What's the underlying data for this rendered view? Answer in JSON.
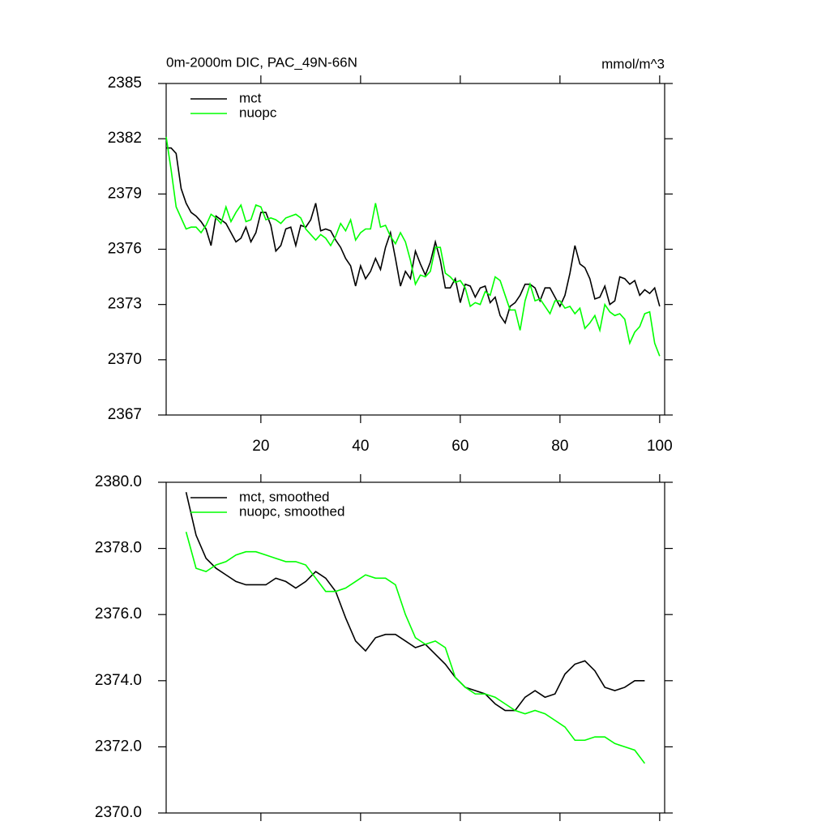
{
  "chart_data": [
    {
      "type": "line",
      "title": "0m-2000m DIC, PAC_49N-66N",
      "units": "mmol/m^3",
      "x": [
        1,
        2,
        3,
        4,
        5,
        6,
        7,
        8,
        9,
        10,
        11,
        12,
        13,
        14,
        15,
        16,
        17,
        18,
        19,
        20,
        21,
        22,
        23,
        24,
        25,
        26,
        27,
        28,
        29,
        30,
        31,
        32,
        33,
        34,
        35,
        36,
        37,
        38,
        39,
        40,
        41,
        42,
        43,
        44,
        45,
        46,
        47,
        48,
        49,
        50,
        51,
        52,
        53,
        54,
        55,
        56,
        57,
        58,
        59,
        60,
        61,
        62,
        63,
        64,
        65,
        66,
        67,
        68,
        69,
        70,
        71,
        72,
        73,
        74,
        75,
        76,
        77,
        78,
        79,
        80,
        81,
        82,
        83,
        84,
        85,
        86,
        87,
        88,
        89,
        90,
        91,
        92,
        93,
        94,
        95,
        96,
        97,
        98,
        99,
        100
      ],
      "series": [
        {
          "name": "mct",
          "color": "#000000",
          "values": [
            2381.5,
            2381.5,
            2381.2,
            2379.3,
            2378.5,
            2378.0,
            2377.8,
            2377.5,
            2377.1,
            2376.2,
            2377.8,
            2377.6,
            2377.4,
            2376.9,
            2376.4,
            2376.6,
            2377.2,
            2376.4,
            2376.9,
            2378.0,
            2378.0,
            2377.3,
            2375.9,
            2376.2,
            2377.1,
            2377.2,
            2376.2,
            2377.3,
            2377.2,
            2377.6,
            2378.5,
            2377.0,
            2377.1,
            2377.0,
            2376.5,
            2376.1,
            2375.5,
            2375.1,
            2374.0,
            2375.1,
            2374.4,
            2374.8,
            2375.5,
            2374.9,
            2376.1,
            2376.9,
            2375.5,
            2374.0,
            2374.8,
            2374.4,
            2375.9,
            2375.2,
            2374.6,
            2375.3,
            2376.4,
            2375.4,
            2373.9,
            2373.9,
            2374.4,
            2373.1,
            2374.1,
            2374.0,
            2373.4,
            2373.9,
            2374.0,
            2373.1,
            2373.4,
            2372.4,
            2372.0,
            2372.9,
            2373.1,
            2373.5,
            2374.1,
            2374.1,
            2373.9,
            2373.2,
            2373.9,
            2373.9,
            2373.4,
            2372.9,
            2373.5,
            2374.7,
            2376.2,
            2375.2,
            2375.0,
            2374.4,
            2373.3,
            2373.4,
            2374.0,
            2373.0,
            2373.2,
            2374.5,
            2374.4,
            2374.1,
            2374.3,
            2373.5,
            2373.8,
            2373.6,
            2373.9,
            2372.9
          ]
        },
        {
          "name": "nuopc",
          "color": "#00ff00",
          "values": [
            2382.1,
            2380.3,
            2378.3,
            2377.7,
            2377.1,
            2377.2,
            2377.2,
            2376.9,
            2377.3,
            2377.9,
            2377.7,
            2377.4,
            2378.3,
            2377.5,
            2378.0,
            2378.4,
            2377.5,
            2377.6,
            2378.4,
            2378.3,
            2377.6,
            2377.7,
            2377.6,
            2377.4,
            2377.7,
            2377.8,
            2377.9,
            2377.7,
            2377.1,
            2376.8,
            2376.5,
            2376.8,
            2376.6,
            2376.2,
            2376.7,
            2377.4,
            2377.0,
            2377.6,
            2376.5,
            2376.9,
            2377.1,
            2377.1,
            2378.5,
            2377.2,
            2377.3,
            2376.7,
            2376.3,
            2376.9,
            2376.4,
            2375.4,
            2374.1,
            2374.6,
            2374.5,
            2374.8,
            2376.1,
            2376.1,
            2374.7,
            2374.5,
            2374.2,
            2374.3,
            2373.9,
            2372.9,
            2373.1,
            2373.0,
            2373.7,
            2373.5,
            2374.5,
            2374.3,
            2373.5,
            2372.7,
            2372.7,
            2371.6,
            2373.2,
            2374.1,
            2373.2,
            2373.3,
            2372.9,
            2372.5,
            2373.2,
            2373.2,
            2372.8,
            2372.9,
            2372.5,
            2372.8,
            2371.7,
            2372.0,
            2372.4,
            2371.6,
            2373.0,
            2372.6,
            2372.4,
            2372.5,
            2372.2,
            2370.9,
            2371.5,
            2371.8,
            2372.5,
            2372.6,
            2370.9,
            2370.2
          ]
        }
      ],
      "xlim": [
        1,
        101
      ],
      "xticks": [
        20,
        40,
        60,
        80,
        100
      ],
      "ylim": [
        2367,
        2385
      ],
      "yticks": [
        2367,
        2370,
        2373,
        2376,
        2379,
        2382,
        2385
      ],
      "legend": "upper left"
    },
    {
      "type": "line",
      "x": [
        5,
        7,
        9,
        11,
        13,
        15,
        17,
        19,
        21,
        23,
        25,
        27,
        29,
        31,
        33,
        35,
        37,
        39,
        41,
        43,
        45,
        47,
        49,
        51,
        53,
        55,
        57,
        59,
        61,
        63,
        65,
        67,
        69,
        71,
        73,
        75,
        77,
        79,
        81,
        83,
        85,
        87,
        89,
        91,
        93,
        95,
        97
      ],
      "series": [
        {
          "name": "mct, smoothed",
          "color": "#000000",
          "values": [
            2379.7,
            2378.4,
            2377.7,
            2377.4,
            2377.2,
            2377.0,
            2376.9,
            2376.9,
            2376.9,
            2377.1,
            2377.0,
            2376.8,
            2377.0,
            2377.3,
            2377.1,
            2376.7,
            2375.9,
            2375.2,
            2374.9,
            2375.3,
            2375.4,
            2375.4,
            2375.2,
            2375.0,
            2375.1,
            2374.8,
            2374.5,
            2374.1,
            2373.8,
            2373.7,
            2373.6,
            2373.3,
            2373.1,
            2373.1,
            2373.5,
            2373.7,
            2373.5,
            2373.6,
            2374.2,
            2374.5,
            2374.6,
            2374.3,
            2373.8,
            2373.7,
            2373.8,
            2374.0,
            2374.0
          ]
        },
        {
          "name": "nuopc, smoothed",
          "color": "#00ff00",
          "values": [
            2378.5,
            2377.4,
            2377.3,
            2377.5,
            2377.6,
            2377.8,
            2377.9,
            2377.9,
            2377.8,
            2377.7,
            2377.6,
            2377.6,
            2377.5,
            2377.1,
            2376.7,
            2376.7,
            2376.8,
            2377.0,
            2377.2,
            2377.1,
            2377.1,
            2376.9,
            2376.0,
            2375.3,
            2375.1,
            2375.2,
            2375.0,
            2374.1,
            2373.8,
            2373.6,
            2373.6,
            2373.5,
            2373.3,
            2373.1,
            2373.0,
            2373.1,
            2373.0,
            2372.8,
            2372.6,
            2372.2,
            2372.2,
            2372.3,
            2372.3,
            2372.1,
            2372.0,
            2371.9,
            2371.5
          ]
        }
      ],
      "xlim": [
        1,
        101
      ],
      "xticks": [
        20,
        40,
        60,
        80,
        100
      ],
      "ylim": [
        2370,
        2380
      ],
      "yticks": [
        {
          "value": 2370,
          "label": "2370.0"
        },
        {
          "value": 2372,
          "label": "2372.0"
        },
        {
          "value": 2374,
          "label": "2374.0"
        },
        {
          "value": 2376,
          "label": "2376.0"
        },
        {
          "value": 2378,
          "label": "2378.0"
        },
        {
          "value": 2380,
          "label": "2380.0"
        }
      ],
      "legend": "upper left"
    }
  ]
}
